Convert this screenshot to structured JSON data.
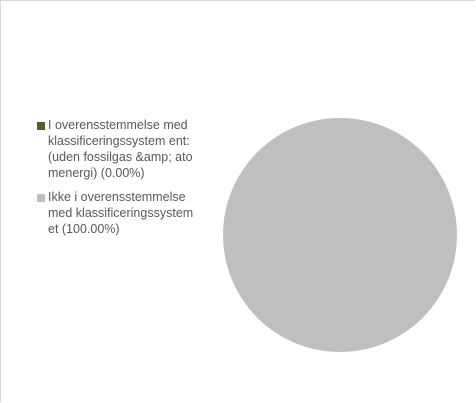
{
  "chart_data": {
    "type": "pie",
    "title": "",
    "legend_position": "left",
    "slices": [
      {
        "label": "I overensstemmelse med klassificeringssystem ent: (uden fossilgas &amp; atomenergi) (0.00%)",
        "value": 0.0,
        "color": "#4f6228"
      },
      {
        "label": "Ikke i overensstemmelse med klassificeringssystem et (100.00%)",
        "value": 100.0,
        "color": "#bfbfbf"
      }
    ]
  }
}
